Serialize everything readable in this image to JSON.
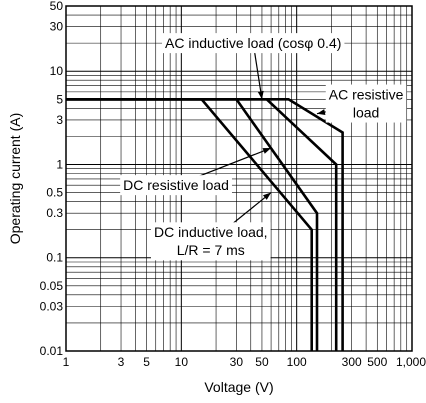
{
  "chart_data": {
    "type": "line",
    "xlabel": "Voltage (V)",
    "ylabel": "Operating current (A)",
    "xscale": "log",
    "yscale": "log",
    "xlim": [
      1,
      1000
    ],
    "ylim": [
      0.01,
      50
    ],
    "grid": true,
    "x_ticks": [
      {
        "value": 1,
        "label": "1"
      },
      {
        "value": 3,
        "label": "3"
      },
      {
        "value": 5,
        "label": "5"
      },
      {
        "value": 10,
        "label": "10"
      },
      {
        "value": 30,
        "label": "30"
      },
      {
        "value": 50,
        "label": "50"
      },
      {
        "value": 100,
        "label": "100"
      },
      {
        "value": 300,
        "label": "300"
      },
      {
        "value": 500,
        "label": "500"
      },
      {
        "value": 1000,
        "label": "1,000"
      }
    ],
    "y_ticks": [
      {
        "value": 0.01,
        "label": "0.01"
      },
      {
        "value": 0.03,
        "label": "0.03"
      },
      {
        "value": 0.05,
        "label": "0.05"
      },
      {
        "value": 0.1,
        "label": "0.1"
      },
      {
        "value": 0.3,
        "label": "0.3"
      },
      {
        "value": 0.5,
        "label": "0.5"
      },
      {
        "value": 1,
        "label": "1"
      },
      {
        "value": 3,
        "label": "3"
      },
      {
        "value": 5,
        "label": "5"
      },
      {
        "value": 10,
        "label": "10"
      },
      {
        "value": 30,
        "label": "30"
      },
      {
        "value": 50,
        "label": "50"
      }
    ],
    "series": [
      {
        "x": [
          1,
          85,
          250,
          250
        ],
        "y": [
          5,
          5,
          2.2,
          0.01
        ]
      },
      {
        "x": [
          1,
          55,
          220,
          220
        ],
        "y": [
          5,
          5,
          1,
          0.01
        ]
      },
      {
        "x": [
          1,
          30,
          150,
          150
        ],
        "y": [
          5,
          5,
          0.3,
          0.01
        ]
      },
      {
        "x": [
          1,
          15,
          135,
          135
        ],
        "y": [
          5,
          5,
          0.2,
          0.01
        ]
      }
    ],
    "annotations": [
      {
        "lines": [
          "AC inductive load (cosφ 0.4)"
        ],
        "x": 42,
        "y": 20,
        "arrow_to": [
          50,
          5
        ]
      },
      {
        "lines": [
          "AC resistive",
          "load"
        ],
        "x": 400,
        "y": 4.5,
        "arrow_to": [
          150,
          3.5
        ]
      },
      {
        "lines": [
          "DC resistive load"
        ],
        "x": 9,
        "y": 0.6,
        "arrow_to": [
          60,
          1.5
        ]
      },
      {
        "lines": [
          "DC inductive load,",
          "L/R = 7 ms"
        ],
        "x": 18,
        "y": 0.15,
        "arrow_to": [
          60,
          0.5
        ]
      }
    ]
  }
}
